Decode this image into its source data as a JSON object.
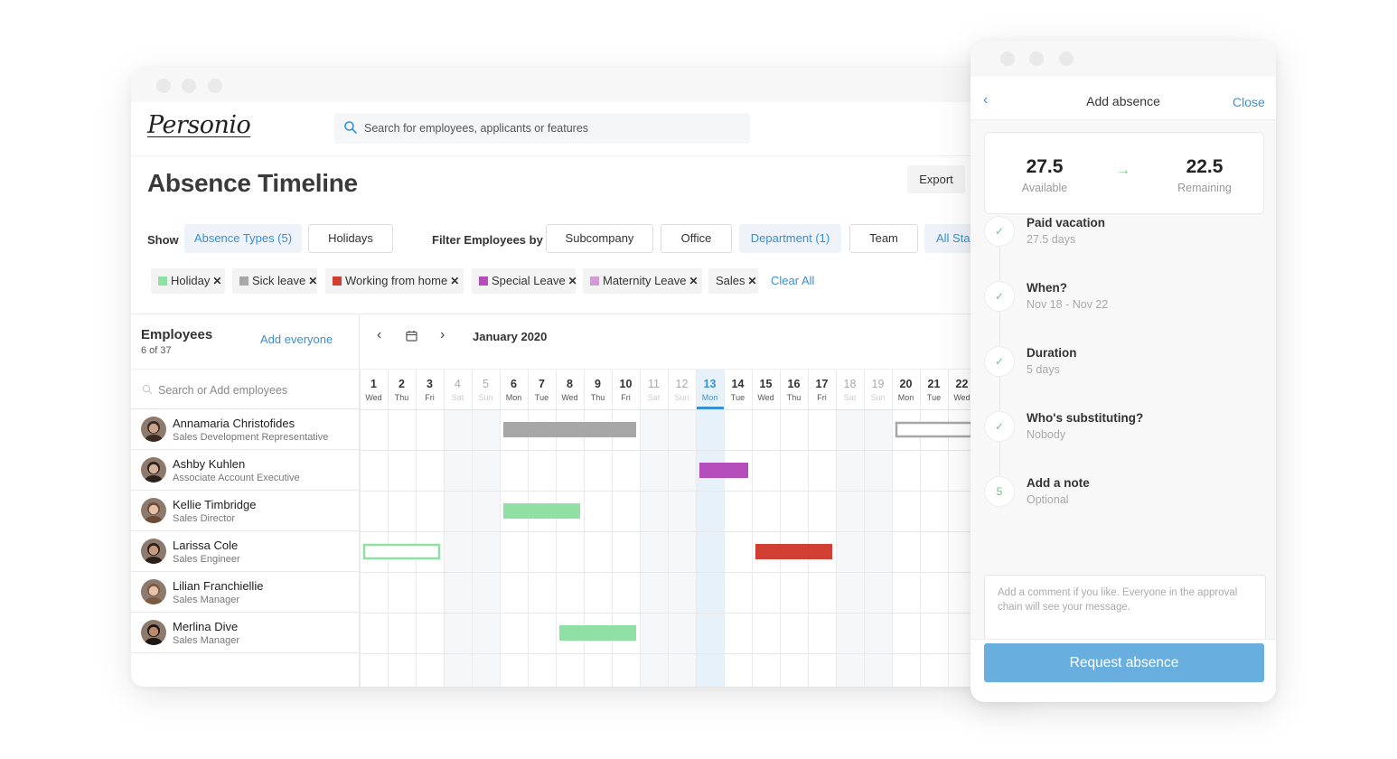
{
  "app": {
    "logo": "Personio",
    "search_placeholder": "Search for employees, applicants or features"
  },
  "page": {
    "title": "Absence Timeline",
    "export_label": "Export"
  },
  "filters": {
    "show_label": "Show",
    "absence_types_label": "Absence Types (5)",
    "holidays_label": "Holidays",
    "filter_by_label": "Filter Employees by",
    "subcompany_label": "Subcompany",
    "office_label": "Office",
    "department_label": "Department (1)",
    "team_label": "Team",
    "status_label": "All Sta",
    "chips": [
      {
        "label": "Holiday",
        "color": "#8fe0a3"
      },
      {
        "label": "Sick leave",
        "color": "#a7a7a7"
      },
      {
        "label": "Working from home",
        "color": "#d13f33"
      },
      {
        "label": "Special Leave",
        "color": "#b44dba"
      },
      {
        "label": "Maternity Leave",
        "color": "#d499d8"
      },
      {
        "label": "Sales",
        "color": ""
      }
    ],
    "clear_all": "Clear All",
    "remove_glyph": "✕"
  },
  "employees_panel": {
    "title": "Employees",
    "count": "6 of 37",
    "add_everyone": "Add everyone",
    "search_placeholder": "Search or Add employees"
  },
  "employees": [
    {
      "name": "Annamaria Christofides",
      "role": "Sales Development Representative"
    },
    {
      "name": "Ashby Kuhlen",
      "role": "Associate Account Executive"
    },
    {
      "name": "Kellie Timbridge",
      "role": "Sales Director"
    },
    {
      "name": "Larissa Cole",
      "role": "Sales Engineer"
    },
    {
      "name": "Lilian Franchiellie",
      "role": "Sales Manager"
    },
    {
      "name": "Merlina Dive",
      "role": "Sales Manager"
    }
  ],
  "calendar": {
    "month": "January 2020",
    "today_day": 13,
    "days": [
      {
        "n": "1",
        "d": "Wed",
        "weekend": false
      },
      {
        "n": "2",
        "d": "Thu",
        "weekend": false
      },
      {
        "n": "3",
        "d": "Fri",
        "weekend": false
      },
      {
        "n": "4",
        "d": "Sat",
        "weekend": true
      },
      {
        "n": "5",
        "d": "Sun",
        "weekend": true
      },
      {
        "n": "6",
        "d": "Mon",
        "weekend": false
      },
      {
        "n": "7",
        "d": "Tue",
        "weekend": false
      },
      {
        "n": "8",
        "d": "Wed",
        "weekend": false
      },
      {
        "n": "9",
        "d": "Thu",
        "weekend": false
      },
      {
        "n": "10",
        "d": "Fri",
        "weekend": false
      },
      {
        "n": "11",
        "d": "Sat",
        "weekend": true
      },
      {
        "n": "12",
        "d": "Sun",
        "weekend": true
      },
      {
        "n": "13",
        "d": "Mon",
        "weekend": false
      },
      {
        "n": "14",
        "d": "Tue",
        "weekend": false
      },
      {
        "n": "15",
        "d": "Wed",
        "weekend": false
      },
      {
        "n": "16",
        "d": "Thu",
        "weekend": false
      },
      {
        "n": "17",
        "d": "Fri",
        "weekend": false
      },
      {
        "n": "18",
        "d": "Sat",
        "weekend": true
      },
      {
        "n": "19",
        "d": "Sun",
        "weekend": true
      },
      {
        "n": "20",
        "d": "Mon",
        "weekend": false
      },
      {
        "n": "21",
        "d": "Tue",
        "weekend": false
      },
      {
        "n": "22",
        "d": "Wed",
        "weekend": false
      }
    ],
    "absences": [
      {
        "row": 0,
        "start": 6,
        "end": 10,
        "type": "Sick leave",
        "color": "#a7a7a7",
        "outline": false
      },
      {
        "row": 0,
        "start": 20,
        "end": 22,
        "type": "Sick leave",
        "color": "#a7a7a7",
        "outline": true
      },
      {
        "row": 1,
        "start": 13,
        "end": 14,
        "type": "Special Leave",
        "color": "#b44dba",
        "outline": false
      },
      {
        "row": 2,
        "start": 6,
        "end": 8,
        "type": "Holiday",
        "color": "#8fe0a3",
        "outline": false
      },
      {
        "row": 3,
        "start": 1,
        "end": 3,
        "type": "Holiday",
        "color": "#8fe0a3",
        "outline": true
      },
      {
        "row": 3,
        "start": 15,
        "end": 17,
        "type": "Working from home",
        "color": "#d13f33",
        "outline": false
      },
      {
        "row": 5,
        "start": 8,
        "end": 10,
        "type": "Holiday",
        "color": "#8fe0a3",
        "outline": false
      }
    ]
  },
  "add_absence": {
    "title": "Add absence",
    "close_label": "Close",
    "available_value": "27.5",
    "available_label": "Available",
    "remaining_value": "22.5",
    "remaining_label": "Remaining",
    "steps": [
      {
        "marker": "✓",
        "title": "Paid vacation",
        "sub": "27.5 days"
      },
      {
        "marker": "✓",
        "title": "When?",
        "sub": "Nov 18 - Nov 22"
      },
      {
        "marker": "✓",
        "title": "Duration",
        "sub": "5 days"
      },
      {
        "marker": "✓",
        "title": "Who's substituting?",
        "sub": "Nobody"
      },
      {
        "marker": "5",
        "title": "Add a note",
        "sub": "Optional"
      }
    ],
    "note_placeholder": "Add a comment if you like. Everyone in the approval chain will see your message.",
    "note_char_limit": "250",
    "submit_label": "Request absence"
  }
}
